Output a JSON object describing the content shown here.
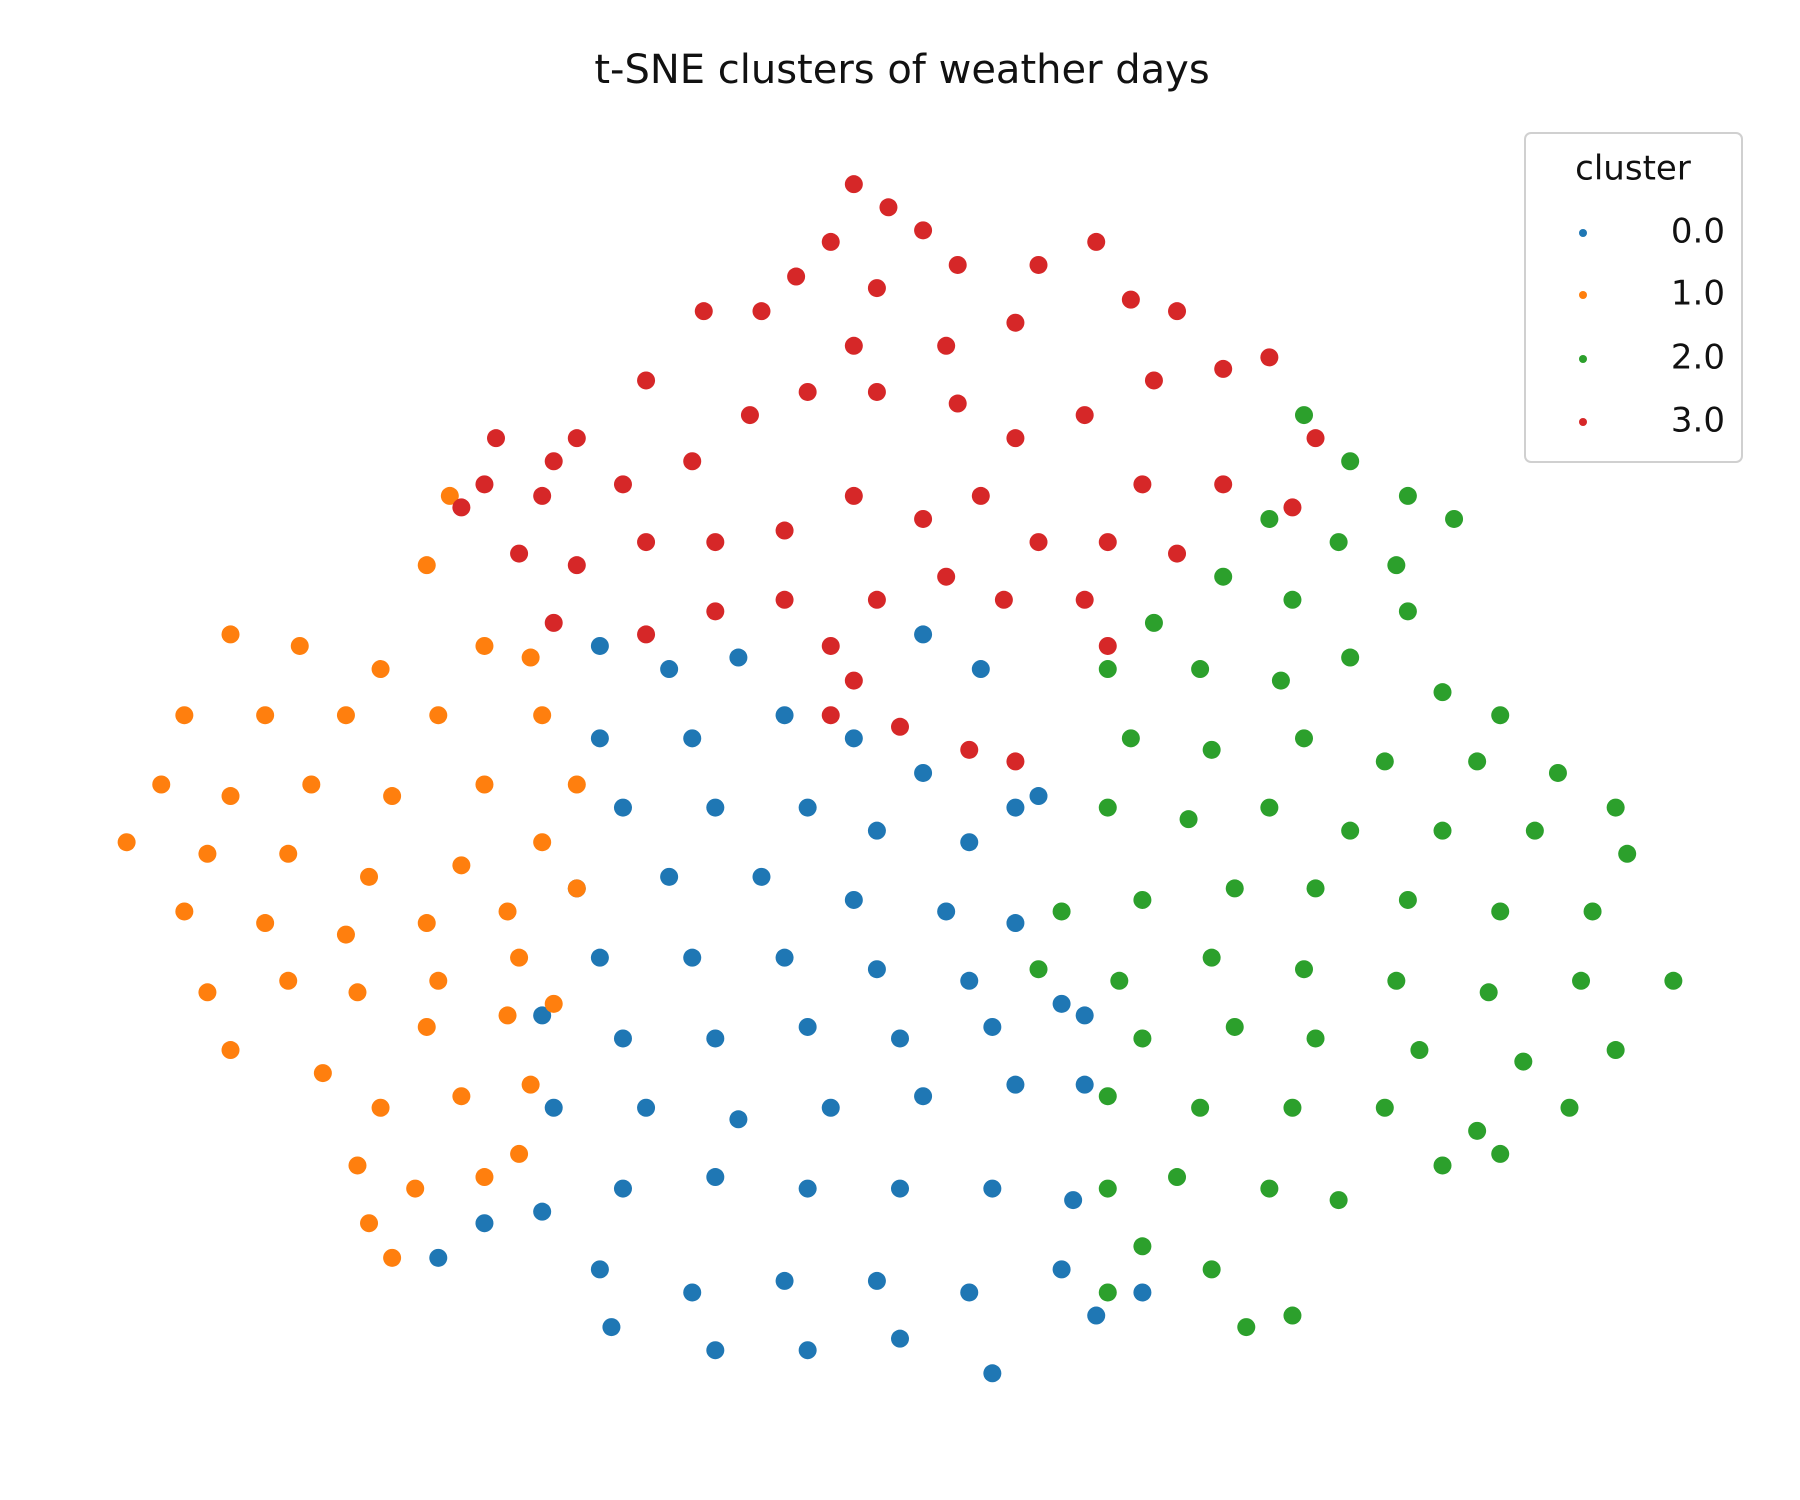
{
  "chart_data": {
    "type": "scatter",
    "title": "t-SNE clusters of weather days",
    "legend_title": "cluster",
    "legend": "upper right",
    "xlim": [
      -70,
      70
    ],
    "ylim": [
      -56,
      56
    ],
    "series": [
      {
        "name": "0.0",
        "color": "#1f77b4",
        "x": [
          -26,
          -20,
          -14,
          2,
          7,
          -26,
          -18,
          -10,
          -4,
          2,
          10,
          -24,
          -16,
          -8,
          -2,
          6,
          12,
          -28,
          -20,
          -12,
          -4,
          4,
          10,
          -26,
          -18,
          -10,
          -2,
          6,
          14,
          -31,
          -24,
          -16,
          -8,
          0,
          8,
          16,
          -30,
          -22,
          -14,
          -6,
          2,
          10,
          16,
          -36,
          -31,
          -24,
          -16,
          -8,
          0,
          8,
          15,
          -40,
          -26,
          -18,
          -10,
          -2,
          6,
          14,
          21,
          -25,
          -16,
          -8,
          0,
          8,
          17
        ],
        "y": [
          12,
          10,
          11,
          13,
          10,
          4,
          4,
          6,
          4,
          1,
          -2,
          -2,
          -2,
          -2,
          -4,
          -5,
          -1,
          -9,
          -8,
          -8,
          -10,
          -11,
          -12,
          -15,
          -15,
          -15,
          -16,
          -17,
          -19,
          -20,
          -22,
          -22,
          -21,
          -22,
          -21,
          -20,
          -28,
          -28,
          -29,
          -28,
          -27,
          -26,
          -26,
          -38,
          -37,
          -35,
          -34,
          -35,
          -35,
          -35,
          -36,
          -41,
          -42,
          -44,
          -43,
          -43,
          -44,
          -42,
          -44,
          -47,
          -49,
          -49,
          -48,
          -51,
          -46
        ]
      },
      {
        "name": "1.0",
        "color": "#ff7f0e",
        "x": [
          -39,
          -41,
          -58,
          -52,
          -45,
          -36,
          -32,
          -62,
          -55,
          -48,
          -40,
          -31,
          -64,
          -58,
          -51,
          -44,
          -36,
          -28,
          -67,
          -60,
          -53,
          -46,
          -38,
          -31,
          -62,
          -55,
          -48,
          -41,
          -34,
          -28,
          -60,
          -53,
          -47,
          -40,
          -33,
          -58,
          -50,
          -41,
          -34,
          -30,
          -45,
          -38,
          -32,
          -47,
          -42,
          -33,
          -46,
          -44,
          -36
        ],
        "y": [
          25,
          19,
          13,
          12,
          10,
          12,
          11,
          6,
          6,
          6,
          6,
          6,
          0,
          -1,
          0,
          -1,
          0,
          0,
          -5,
          -6,
          -6,
          -8,
          -7,
          -5,
          -11,
          -12,
          -13,
          -12,
          -11,
          -9,
          -18,
          -17,
          -18,
          -17,
          -15,
          -23,
          -25,
          -21,
          -20,
          -19,
          -28,
          -27,
          -26,
          -33,
          -35,
          -32,
          -38,
          -41,
          -34
        ]
      },
      {
        "name": "2.0",
        "color": "#2ca02c",
        "x": [
          35,
          39,
          44,
          48,
          32,
          38,
          43,
          28,
          34,
          44,
          22,
          18,
          26,
          33,
          39,
          47,
          52,
          20,
          27,
          35,
          42,
          50,
          57,
          62,
          18,
          25,
          32,
          39,
          47,
          55,
          63,
          14,
          21,
          29,
          36,
          44,
          52,
          60,
          12,
          19,
          27,
          35,
          43,
          51,
          59,
          67,
          21,
          29,
          36,
          45,
          54,
          62,
          18,
          26,
          34,
          42,
          50,
          58,
          24,
          32,
          38,
          47,
          52,
          18,
          21,
          27,
          34,
          30,
          18
        ],
        "y": [
          32,
          28,
          25,
          23,
          23,
          21,
          19,
          18,
          16,
          15,
          14,
          10,
          10,
          9,
          11,
          8,
          6,
          4,
          3,
          4,
          2,
          2,
          1,
          -2,
          -2,
          -3,
          -2,
          -4,
          -4,
          -4,
          -6,
          -11,
          -10,
          -9,
          -9,
          -10,
          -11,
          -11,
          -16,
          -17,
          -15,
          -16,
          -17,
          -18,
          -17,
          -17,
          -22,
          -21,
          -22,
          -23,
          -24,
          -23,
          -27,
          -28,
          -28,
          -28,
          -30,
          -28,
          -34,
          -35,
          -36,
          -33,
          -32,
          -35,
          -40,
          -42,
          -46,
          -47,
          -44
        ]
      },
      {
        "name": "3.0",
        "color": "#d62728",
        "x": [
          -4,
          -1,
          -6,
          2,
          -9,
          -2,
          5,
          12,
          17,
          20,
          24,
          10,
          4,
          -4,
          -12,
          -17,
          -22,
          -28,
          -35,
          -36,
          -31,
          -24,
          -18,
          -13,
          -8,
          -2,
          5,
          10,
          16,
          22,
          28,
          32,
          36,
          34,
          28,
          21,
          18,
          24,
          12,
          7,
          2,
          -4,
          -10,
          -16,
          -22,
          -28,
          -30,
          -22,
          -16,
          -10,
          -6,
          -2,
          4,
          9,
          16,
          18,
          -6,
          0,
          6,
          10,
          -4,
          -33,
          -38,
          -30
        ],
        "y": [
          52,
          50,
          47,
          48,
          44,
          43,
          45,
          45,
          47,
          42,
          41,
          40,
          38,
          38,
          41,
          41,
          35,
          30,
          30,
          26,
          25,
          26,
          28,
          32,
          34,
          34,
          33,
          30,
          32,
          35,
          36,
          37,
          30,
          24,
          26,
          26,
          21,
          20,
          21,
          25,
          23,
          25,
          22,
          21,
          21,
          19,
          14,
          13,
          15,
          16,
          12,
          16,
          18,
          16,
          16,
          12,
          6,
          5,
          3,
          2,
          9,
          20,
          24,
          28
        ]
      }
    ]
  }
}
